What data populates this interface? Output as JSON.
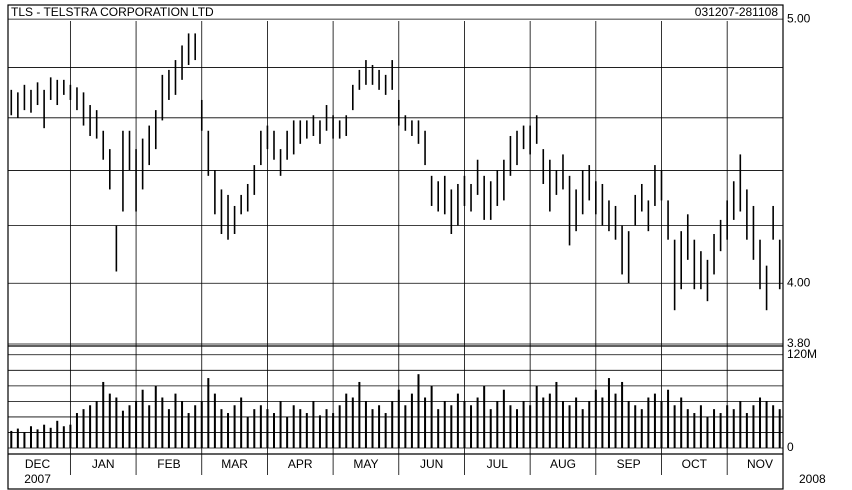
{
  "chart_data": {
    "type": "ohlc",
    "title": "TLS - TELSTRA CORPORATION LTD",
    "date_range": "031207-281108",
    "color": "#000000",
    "log_scale": true,
    "grid": true,
    "xlim": [
      0.05,
      11.85
    ],
    "xticks": [
      {
        "value": 0,
        "label": "DEC"
      },
      {
        "value": 1,
        "label": "JAN"
      },
      {
        "value": 2,
        "label": "FEB"
      },
      {
        "value": 3,
        "label": "MAR"
      },
      {
        "value": 4,
        "label": "APR"
      },
      {
        "value": 5,
        "label": "MAY"
      },
      {
        "value": 6,
        "label": "JUN"
      },
      {
        "value": 7,
        "label": "JUL"
      },
      {
        "value": 8,
        "label": "AUG"
      },
      {
        "value": 9,
        "label": "SEP"
      },
      {
        "value": 10,
        "label": "OCT"
      },
      {
        "value": 11,
        "label": "NOV"
      }
    ],
    "year_labels": [
      {
        "value": 0,
        "label": "2007"
      },
      {
        "value": 12,
        "label": "2008"
      }
    ],
    "ylim": [
      3.8,
      5.06
    ],
    "yticks": [
      {
        "value": 3.8,
        "label": "3.80"
      },
      {
        "value": 4,
        "label": "4.00"
      },
      {
        "value": 5,
        "label": "5.00"
      }
    ],
    "ygrid": [
      4.2,
      4.4,
      4.6,
      4.8
    ],
    "x": [
      0.1,
      0.2,
      0.3,
      0.4,
      0.5,
      0.6,
      0.7,
      0.8,
      0.9,
      1.0,
      1.1,
      1.2,
      1.3,
      1.4,
      1.5,
      1.6,
      1.7,
      1.8,
      1.9,
      2.0,
      2.1,
      2.2,
      2.3,
      2.4,
      2.5,
      2.6,
      2.7,
      2.8,
      2.9,
      3.0,
      3.1,
      3.2,
      3.3,
      3.4,
      3.5,
      3.6,
      3.7,
      3.8,
      3.9,
      4.0,
      4.1,
      4.2,
      4.3,
      4.4,
      4.5,
      4.6,
      4.7,
      4.8,
      4.9,
      5.0,
      5.1,
      5.2,
      5.3,
      5.4,
      5.5,
      5.6,
      5.7,
      5.8,
      5.9,
      6.0,
      6.1,
      6.2,
      6.3,
      6.4,
      6.5,
      6.6,
      6.7,
      6.8,
      6.9,
      7.0,
      7.1,
      7.2,
      7.3,
      7.4,
      7.5,
      7.6,
      7.7,
      7.8,
      7.9,
      8.0,
      8.1,
      8.2,
      8.3,
      8.4,
      8.5,
      8.6,
      8.7,
      8.8,
      8.9,
      9.0,
      9.1,
      9.2,
      9.3,
      9.4,
      9.5,
      9.6,
      9.7,
      9.8,
      9.9,
      10.0,
      10.1,
      10.2,
      10.3,
      10.4,
      10.5,
      10.6,
      10.7,
      10.8,
      10.9,
      11.0,
      11.1,
      11.2,
      11.3,
      11.4,
      11.5,
      11.6,
      11.7,
      11.8
    ],
    "high": [
      4.71,
      4.7,
      4.73,
      4.71,
      4.74,
      4.71,
      4.76,
      4.75,
      4.75,
      4.73,
      4.72,
      4.7,
      4.65,
      4.63,
      4.55,
      4.48,
      4.2,
      4.55,
      4.55,
      4.48,
      4.52,
      4.57,
      4.63,
      4.77,
      4.79,
      4.83,
      4.89,
      4.94,
      4.94,
      4.67,
      4.55,
      4.4,
      4.33,
      4.31,
      4.27,
      4.31,
      4.35,
      4.42,
      4.55,
      4.57,
      4.55,
      4.48,
      4.55,
      4.59,
      4.59,
      4.59,
      4.61,
      4.59,
      4.65,
      4.61,
      4.59,
      4.61,
      4.73,
      4.79,
      4.83,
      4.81,
      4.79,
      4.77,
      4.83,
      4.67,
      4.61,
      4.59,
      4.59,
      4.55,
      4.38,
      4.36,
      4.38,
      4.33,
      4.35,
      4.38,
      4.35,
      4.44,
      4.38,
      4.36,
      4.4,
      4.44,
      4.53,
      4.55,
      4.57,
      4.57,
      4.61,
      4.48,
      4.44,
      4.4,
      4.46,
      4.38,
      4.33,
      4.4,
      4.42,
      4.36,
      4.35,
      4.29,
      4.27,
      4.2,
      4.18,
      4.31,
      4.35,
      4.29,
      4.42,
      4.4,
      4.29,
      4.15,
      4.18,
      4.24,
      4.15,
      4.11,
      4.08,
      4.17,
      4.22,
      4.29,
      4.36,
      4.46,
      4.33,
      4.27,
      4.15,
      4.06,
      4.27,
      4.15
    ],
    "low": [
      4.61,
      4.6,
      4.63,
      4.62,
      4.65,
      4.56,
      4.67,
      4.65,
      4.69,
      4.67,
      4.63,
      4.57,
      4.53,
      4.52,
      4.44,
      4.33,
      4.04,
      4.25,
      4.4,
      4.25,
      4.33,
      4.42,
      4.48,
      4.59,
      4.67,
      4.69,
      4.75,
      4.81,
      4.83,
      4.55,
      4.38,
      4.24,
      4.17,
      4.15,
      4.17,
      4.24,
      4.25,
      4.31,
      4.42,
      4.48,
      4.44,
      4.38,
      4.44,
      4.46,
      4.5,
      4.52,
      4.53,
      4.5,
      4.55,
      4.52,
      4.52,
      4.53,
      4.63,
      4.71,
      4.73,
      4.73,
      4.71,
      4.69,
      4.71,
      4.57,
      4.55,
      4.53,
      4.5,
      4.42,
      4.27,
      4.25,
      4.24,
      4.17,
      4.2,
      4.27,
      4.25,
      4.31,
      4.22,
      4.22,
      4.27,
      4.29,
      4.38,
      4.42,
      4.48,
      4.46,
      4.5,
      4.35,
      4.25,
      4.31,
      4.33,
      4.13,
      4.18,
      4.24,
      4.29,
      4.24,
      4.2,
      4.18,
      4.15,
      4.03,
      4.0,
      4.2,
      4.25,
      4.18,
      4.27,
      4.29,
      4.15,
      3.91,
      3.98,
      4.08,
      3.98,
      3.98,
      3.94,
      4.03,
      4.11,
      4.15,
      4.22,
      4.25,
      4.15,
      4.08,
      3.98,
      3.91,
      4.15,
      3.98
    ],
    "volume": [
      22,
      25,
      20,
      28,
      24,
      30,
      26,
      35,
      28,
      30,
      45,
      50,
      55,
      60,
      85,
      70,
      65,
      48,
      55,
      60,
      75,
      55,
      80,
      65,
      50,
      70,
      60,
      45,
      55,
      60,
      90,
      70,
      50,
      45,
      55,
      65,
      40,
      50,
      55,
      50,
      45,
      60,
      40,
      55,
      50,
      45,
      60,
      42,
      50,
      45,
      55,
      70,
      65,
      85,
      60,
      50,
      55,
      45,
      60,
      75,
      55,
      70,
      95,
      65,
      80,
      50,
      60,
      55,
      70,
      60,
      55,
      65,
      80,
      50,
      60,
      75,
      55,
      50,
      60,
      55,
      80,
      65,
      70,
      85,
      60,
      55,
      65,
      50,
      60,
      75,
      65,
      90,
      70,
      85,
      60,
      55,
      50,
      65,
      70,
      60,
      75,
      55,
      65,
      50,
      45,
      55,
      40,
      50,
      45,
      55,
      50,
      60,
      45,
      55,
      65,
      60,
      55,
      50
    ],
    "vlim": [
      0,
      130
    ],
    "vticks": [
      {
        "value": 0,
        "label": "0"
      },
      {
        "value": 120,
        "label": "120M"
      }
    ],
    "vgrid": [
      20,
      40,
      60,
      80,
      100
    ]
  }
}
